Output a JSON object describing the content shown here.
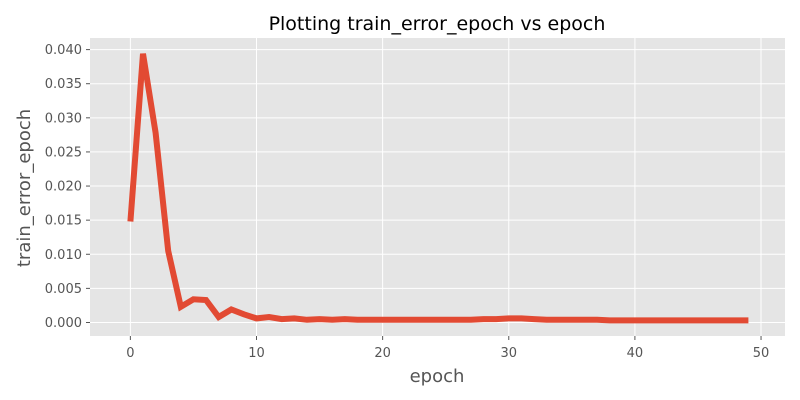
{
  "chart_data": {
    "type": "line",
    "title": "Plotting train_error_epoch vs epoch",
    "xlabel": "epoch",
    "ylabel": "train_error_epoch",
    "xlim": [
      -3.2,
      51.9
    ],
    "ylim": [
      -0.00198,
      0.0417
    ],
    "x_ticks": [
      0,
      10,
      20,
      30,
      40,
      50
    ],
    "x_tick_labels": [
      "0",
      "10",
      "20",
      "30",
      "40",
      "50"
    ],
    "y_ticks": [
      0.0,
      0.005,
      0.01,
      0.015,
      0.02,
      0.025,
      0.03,
      0.035,
      0.04
    ],
    "y_tick_labels": [
      "0.000",
      "0.005",
      "0.010",
      "0.015",
      "0.020",
      "0.025",
      "0.030",
      "0.035",
      "0.040"
    ],
    "grid": true,
    "colors": {
      "line": "#e24a33",
      "plot_bg": "#e5e5e5",
      "grid": "#ffffff",
      "tick": "#555555"
    },
    "series": [
      {
        "x": [
          0,
          1,
          2,
          3,
          4,
          5,
          6,
          7,
          8,
          9,
          10,
          11,
          12,
          13,
          14,
          15,
          16,
          17,
          18,
          19,
          20,
          21,
          22,
          23,
          24,
          25,
          26,
          27,
          28,
          29,
          30,
          31,
          32,
          33,
          34,
          35,
          36,
          37,
          38,
          39,
          40,
          41,
          42,
          43,
          44,
          45,
          46,
          47,
          48,
          49
        ],
        "y": [
          0.0148,
          0.0394,
          0.0278,
          0.0105,
          0.0023,
          0.0034,
          0.0033,
          0.0008,
          0.0019,
          0.0012,
          0.0006,
          0.0008,
          0.0005,
          0.0006,
          0.0004,
          0.0005,
          0.0004,
          0.0005,
          0.0004,
          0.0004,
          0.0004,
          0.0004,
          0.0004,
          0.0004,
          0.0004,
          0.0004,
          0.0004,
          0.0004,
          0.0005,
          0.0005,
          0.0006,
          0.0006,
          0.0005,
          0.0004,
          0.0004,
          0.0004,
          0.0004,
          0.0004,
          0.0003,
          0.0003,
          0.0003,
          0.0003,
          0.0003,
          0.0003,
          0.0003,
          0.0003,
          0.0003,
          0.0003,
          0.0003,
          0.0003
        ]
      }
    ]
  }
}
